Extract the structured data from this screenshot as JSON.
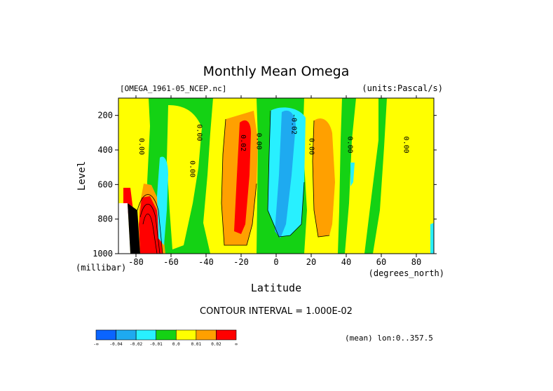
{
  "chart_data": {
    "type": "heatmap",
    "title": "Monthly Mean Omega",
    "file_label": "[OMEGA_1961-05_NCEP.nc]",
    "units_label": "(units:Pascal/s)",
    "xlabel": "Latitude",
    "xunit_label": "(degrees_north)",
    "ylabel": "Level",
    "yunit_label": "(millibar)",
    "xlim": [
      -90,
      90
    ],
    "ylim": [
      1000,
      100
    ],
    "x_ticks": [
      -80,
      -60,
      -40,
      -20,
      0,
      20,
      40,
      60,
      80
    ],
    "y_ticks": [
      200,
      400,
      600,
      800,
      1000
    ],
    "contour_interval_label": "CONTOUR INTERVAL = 1.000E-02",
    "mean_label": "(mean) lon:0..357.5",
    "colorbar": {
      "colors": [
        "#0a64ff",
        "#1eaaf0",
        "#28f0ff",
        "#14d214",
        "#ffff00",
        "#ffa000",
        "#ff0000"
      ],
      "labels": [
        "-∞",
        "-0.04",
        "-0.02",
        "-0.01",
        "0.0",
        "0.01",
        "0.02",
        "∞"
      ]
    },
    "contour_labels": [
      {
        "text": "0.00",
        "lat": -78,
        "lev": 380
      },
      {
        "text": "0.00",
        "lat": -45,
        "lev": 300
      },
      {
        "text": "0.00",
        "lat": -49,
        "lev": 510
      },
      {
        "text": "0.02",
        "lat": -20,
        "lev": 360
      },
      {
        "text": "0.00",
        "lat": -11,
        "lev": 350
      },
      {
        "text": "-0.02",
        "lat": 9,
        "lev": 250
      },
      {
        "text": "0.00",
        "lat": 19,
        "lev": 380
      },
      {
        "text": "0.00",
        "lat": 41,
        "lev": 370
      },
      {
        "text": "0.00",
        "lat": 73,
        "lev": 370
      }
    ]
  }
}
